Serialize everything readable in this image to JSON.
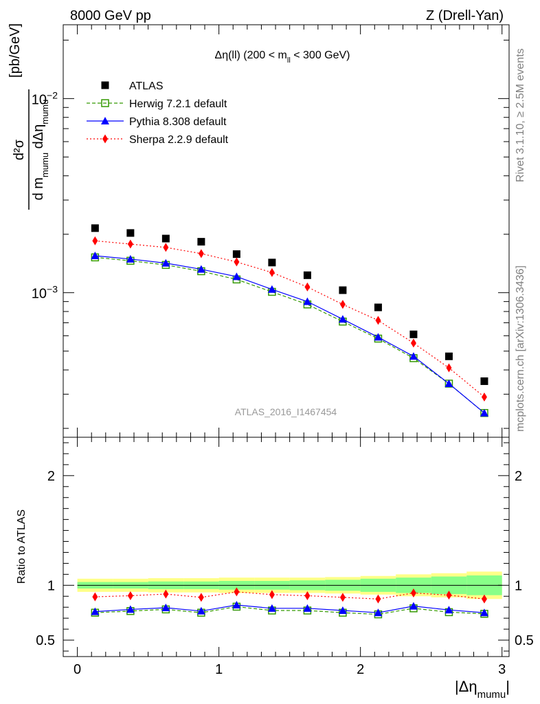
{
  "header": {
    "left": "8000 GeV pp",
    "right": "Z (Drell-Yan)"
  },
  "side_labels": {
    "rivet": "Rivet 3.1.10, ≥ 2.5M events",
    "mcplots": "mcplots.cern.ch [arXiv:1306.3436]"
  },
  "watermark": "ATLAS_2016_I1467454",
  "chart_data": [
    {
      "type": "scatter",
      "title": "Δη(ll) (200 < m_ll < 300 GeV)",
      "title_parts": {
        "main": "Δη(ll) (200 < m",
        "sub": "ll",
        "tail": " < 300 GeV)"
      },
      "ylabel_parts": {
        "num": "d²σ",
        "den_a": "d m",
        "den_a_sub": "mumu",
        "den_b": " dΔη",
        "den_b_sub": "mumu",
        "unit": "[pb/GeV]"
      },
      "y_scale": "log",
      "xlim": [
        -0.1,
        3.05
      ],
      "ylim": [
        0.00018,
        0.024
      ],
      "y_ticks": [
        {
          "value": 0.01,
          "base": "10",
          "exp": "−2"
        },
        {
          "value": 0.001,
          "base": "10",
          "exp": "−3"
        }
      ],
      "legend_position": "top-left",
      "x": [
        0.125,
        0.375,
        0.625,
        0.875,
        1.125,
        1.375,
        1.625,
        1.875,
        2.125,
        2.375,
        2.625,
        2.875
      ],
      "series": [
        {
          "name": "ATLAS",
          "color": "#000000",
          "marker": "square",
          "values": [
            0.00215,
            0.00203,
            0.0019,
            0.00183,
            0.00158,
            0.00143,
            0.00123,
            0.00103,
            0.00084,
            0.00061,
            0.00047,
            0.00035
          ]
        },
        {
          "name": "Herwig 7.2.1 default",
          "color": "#339900",
          "marker": "open-square",
          "line": "dashed",
          "values": [
            0.00152,
            0.00146,
            0.00139,
            0.00129,
            0.00117,
            0.00101,
            0.00087,
            0.00071,
            0.00058,
            0.00046,
            0.00034,
            0.00024
          ]
        },
        {
          "name": "Pythia 8.308 default",
          "color": "#0000ff",
          "marker": "triangle",
          "line": "solid",
          "values": [
            0.00155,
            0.00149,
            0.00142,
            0.00132,
            0.00121,
            0.00104,
            0.0009,
            0.00073,
            0.00059,
            0.00047,
            0.00034,
            0.00024
          ]
        },
        {
          "name": "Sherpa 2.2.9 default",
          "color": "#ff0000",
          "marker": "diamond",
          "line": "dotted",
          "values": [
            0.00185,
            0.00178,
            0.00171,
            0.00159,
            0.00144,
            0.00127,
            0.00107,
            0.00087,
            0.00072,
            0.00055,
            0.00041,
            0.00029
          ]
        }
      ]
    },
    {
      "type": "scatter",
      "ylabel": "Ratio to ATLAS",
      "xlabel_parts": {
        "main": "|Δη",
        "sub": "mumu",
        "tail": "|"
      },
      "xlim": [
        -0.1,
        3.05
      ],
      "ylim": [
        0.35,
        2.35
      ],
      "x_ticks": [
        0,
        1,
        2,
        3
      ],
      "x_tick_labels": [
        "0",
        "1",
        "2",
        "3"
      ],
      "y_ticks": [
        0.5,
        1,
        2
      ],
      "y_tick_labels": [
        "0.5",
        "1",
        "2"
      ],
      "reference_line": 1,
      "bins": [
        0,
        0.25,
        0.5,
        0.75,
        1,
        1.25,
        1.5,
        1.75,
        2,
        2.25,
        2.5,
        2.75,
        3
      ],
      "uncertainty_bands": [
        {
          "name": "total",
          "color": "#ffff88",
          "half_width": [
            0.06,
            0.06,
            0.065,
            0.065,
            0.07,
            0.07,
            0.07,
            0.075,
            0.085,
            0.1,
            0.11,
            0.125
          ]
        },
        {
          "name": "stat",
          "color": "#88ff88",
          "half_width": [
            0.03,
            0.03,
            0.035,
            0.035,
            0.04,
            0.04,
            0.045,
            0.05,
            0.06,
            0.07,
            0.08,
            0.09
          ]
        }
      ],
      "x": [
        0.125,
        0.375,
        0.625,
        0.875,
        1.125,
        1.375,
        1.625,
        1.875,
        2.125,
        2.375,
        2.625,
        2.875
      ],
      "series": [
        {
          "name": "Herwig 7.2.1 default",
          "color": "#339900",
          "marker": "open-square",
          "line": "dashed",
          "values": [
            0.75,
            0.765,
            0.78,
            0.75,
            0.805,
            0.77,
            0.77,
            0.75,
            0.735,
            0.79,
            0.755,
            0.74
          ]
        },
        {
          "name": "Pythia 8.308 default",
          "color": "#0000ff",
          "marker": "triangle",
          "line": "solid",
          "values": [
            0.76,
            0.78,
            0.795,
            0.765,
            0.82,
            0.79,
            0.79,
            0.77,
            0.75,
            0.81,
            0.775,
            0.75
          ]
        },
        {
          "name": "Sherpa 2.2.9 default",
          "color": "#ff0000",
          "marker": "diamond",
          "line": "dotted",
          "values": [
            0.895,
            0.905,
            0.92,
            0.89,
            0.94,
            0.915,
            0.905,
            0.89,
            0.875,
            0.93,
            0.91,
            0.875
          ]
        }
      ]
    }
  ]
}
